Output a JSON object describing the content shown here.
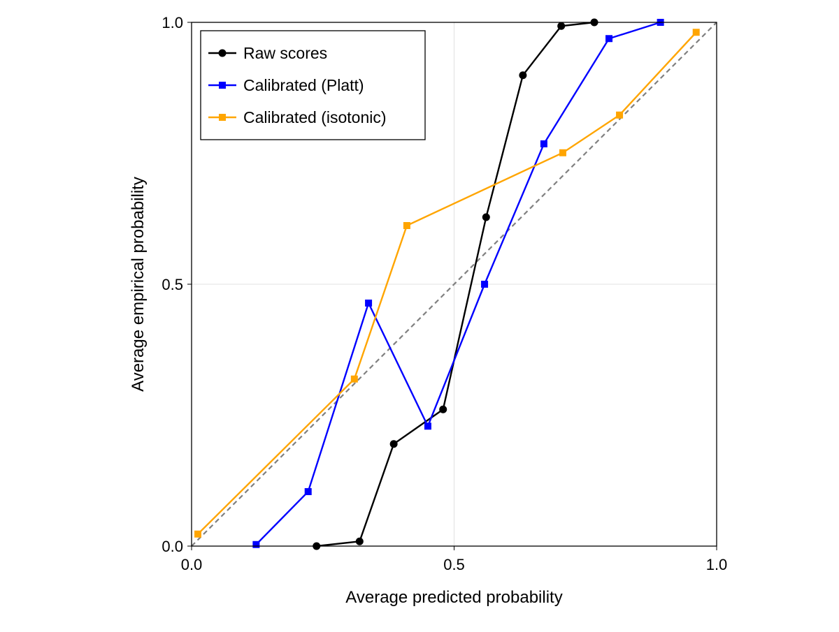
{
  "chart_data": {
    "type": "line",
    "title": "",
    "xlabel": "Average predicted probability",
    "ylabel": "Average empirical probability",
    "xlim": [
      0,
      1
    ],
    "ylim": [
      0,
      1
    ],
    "xticks": [
      "0.0",
      "0.5",
      "1.0"
    ],
    "yticks": [
      "0.0",
      "0.5",
      "1.0"
    ],
    "grid": true,
    "legend_position": "top-left",
    "reference_line": {
      "style": "dashed",
      "color": "#808080",
      "from": [
        0,
        0
      ],
      "to": [
        1,
        1
      ]
    },
    "series": [
      {
        "name": "Raw scores",
        "color": "#000000",
        "marker": "circle",
        "x": [
          0.238,
          0.32,
          0.385,
          0.479,
          0.561,
          0.631,
          0.704,
          0.767
        ],
        "y": [
          0.0,
          0.009,
          0.195,
          0.261,
          0.628,
          0.899,
          0.993,
          1.0
        ]
      },
      {
        "name": "Calibrated (Platt)",
        "color": "#0000ff",
        "marker": "square",
        "x": [
          0.123,
          0.222,
          0.337,
          0.45,
          0.558,
          0.671,
          0.795,
          0.893
        ],
        "y": [
          0.003,
          0.104,
          0.464,
          0.229,
          0.5,
          0.768,
          0.969,
          1.0
        ]
      },
      {
        "name": "Calibrated (isotonic)",
        "color": "#ffa500",
        "marker": "square",
        "x": [
          0.012,
          0.31,
          0.41,
          0.707,
          0.815,
          0.961
        ],
        "y": [
          0.023,
          0.319,
          0.612,
          0.751,
          0.823,
          0.981
        ]
      }
    ]
  }
}
